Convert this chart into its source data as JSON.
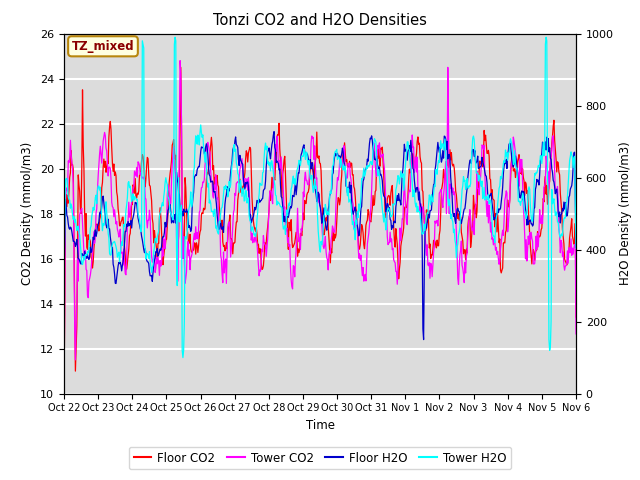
{
  "title": "Tonzi CO2 and H2O Densities",
  "xlabel": "Time",
  "ylabel_left": "CO2 Density (mmol/m3)",
  "ylabel_right": "H2O Density (mmol/m3)",
  "ylim_left": [
    10,
    26
  ],
  "ylim_right": [
    0,
    1000
  ],
  "annotation": "TZ_mixed",
  "legend_labels": [
    "Floor CO2",
    "Tower CO2",
    "Floor H2O",
    "Tower H2O"
  ],
  "colors": {
    "floor_co2": "#FF0000",
    "tower_co2": "#FF00FF",
    "floor_h2o": "#0000CC",
    "tower_h2o": "#00FFFF"
  },
  "bg_color": "#DCDCDC",
  "xtick_labels": [
    "Oct 22",
    "Oct 23",
    "Oct 24",
    "Oct 25",
    "Oct 26",
    "Oct 27",
    "Oct 28",
    "Oct 29",
    "Oct 30",
    "Oct 31",
    "Nov 1",
    "Nov 2",
    "Nov 3",
    "Nov 4",
    "Nov 5",
    "Nov 6"
  ],
  "n_points": 720,
  "seed": 77
}
